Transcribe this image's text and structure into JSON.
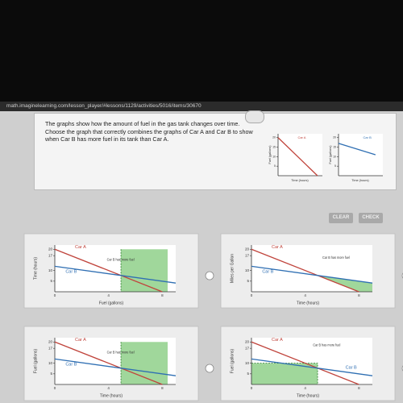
{
  "url": "math.imaginelearning.com/lesson_player/#lessons/1129/activities/5016/items/30670",
  "question": "The graphs show how the amount of fuel in the gas tank changes over time. Choose the graph that correctly combines the graphs of Car A and Car B to show when Car B has more fuel in its tank than Car A.",
  "reference_graphs": [
    {
      "label": "Car A",
      "y_axis": "Fuel (gallons)",
      "x_axis": "Time (hours)",
      "yticks": [
        20,
        15,
        10,
        5
      ]
    },
    {
      "label": "Car B",
      "y_axis": "Fuel (gallons)",
      "x_axis": "Time (hours)",
      "yticks": [
        20,
        15,
        10,
        5
      ]
    }
  ],
  "buttons": [
    "CLEAR",
    "CHECK"
  ],
  "options": [
    {
      "y_axis": "Time (hours)",
      "x_axis": "Fuel (gallons)",
      "car_a": "Car A",
      "car_b": "Car B",
      "note": "Car B has more fuel",
      "yticks": [
        20,
        17,
        10,
        5
      ],
      "xticks": [
        0,
        4,
        8
      ]
    },
    {
      "y_axis": "Miles per Gallon",
      "x_axis": "Time (hours)",
      "car_a": "Car A",
      "car_b": "Car B",
      "note": "Car B has more fuel",
      "yticks": [
        20,
        17,
        10,
        5
      ],
      "xticks": [
        0,
        4,
        8
      ]
    },
    {
      "y_axis": "Fuel (gallons)",
      "x_axis": "Time (hours)",
      "car_a": "Car A",
      "car_b": "Car B",
      "note": "Car B has more fuel",
      "yticks": [
        20,
        17,
        10,
        5
      ],
      "xticks": [
        0,
        4,
        8
      ]
    },
    {
      "y_axis": "Fuel (gallons)",
      "x_axis": "Time (hours)",
      "car_a": "Car A",
      "car_b": "Car B",
      "note": "Car B has more fuel",
      "yticks": [
        20,
        17,
        10,
        5
      ],
      "xticks": [
        0,
        4,
        8
      ]
    }
  ]
}
